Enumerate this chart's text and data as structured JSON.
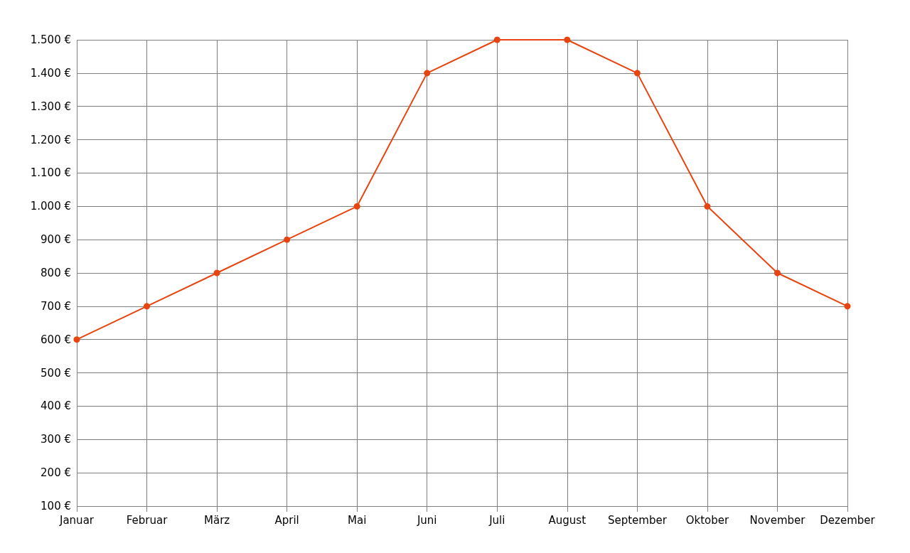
{
  "chart_data": {
    "type": "line",
    "categories": [
      "Januar",
      "Februar",
      "März",
      "April",
      "Mai",
      "Juni",
      "Juli",
      "August",
      "September",
      "Oktober",
      "November",
      "Dezember"
    ],
    "series": [
      {
        "color": "#e8440f",
        "values": [
          600,
          700,
          800,
          900,
          1000,
          1400,
          1500,
          1500,
          1400,
          1000,
          800,
          700
        ]
      }
    ],
    "ylim": [
      100,
      1500
    ],
    "yticks": [
      {
        "value": 100,
        "label": "100 €"
      },
      {
        "value": 200,
        "label": "200 €"
      },
      {
        "value": 300,
        "label": "300 €"
      },
      {
        "value": 400,
        "label": "400 €"
      },
      {
        "value": 500,
        "label": "500 €"
      },
      {
        "value": 600,
        "label": "600 €"
      },
      {
        "value": 700,
        "label": "700 €"
      },
      {
        "value": 800,
        "label": "800 €"
      },
      {
        "value": 900,
        "label": "900 €"
      },
      {
        "value": 1000,
        "label": "1.000 €"
      },
      {
        "value": 1100,
        "label": "1.100 €"
      },
      {
        "value": 1200,
        "label": "1.200 €"
      },
      {
        "value": 1300,
        "label": "1.300 €"
      },
      {
        "value": 1400,
        "label": "1.400 €"
      },
      {
        "value": 1500,
        "label": "1.500 €"
      }
    ],
    "grid": true,
    "marker": "circle",
    "line_style": "solid"
  }
}
